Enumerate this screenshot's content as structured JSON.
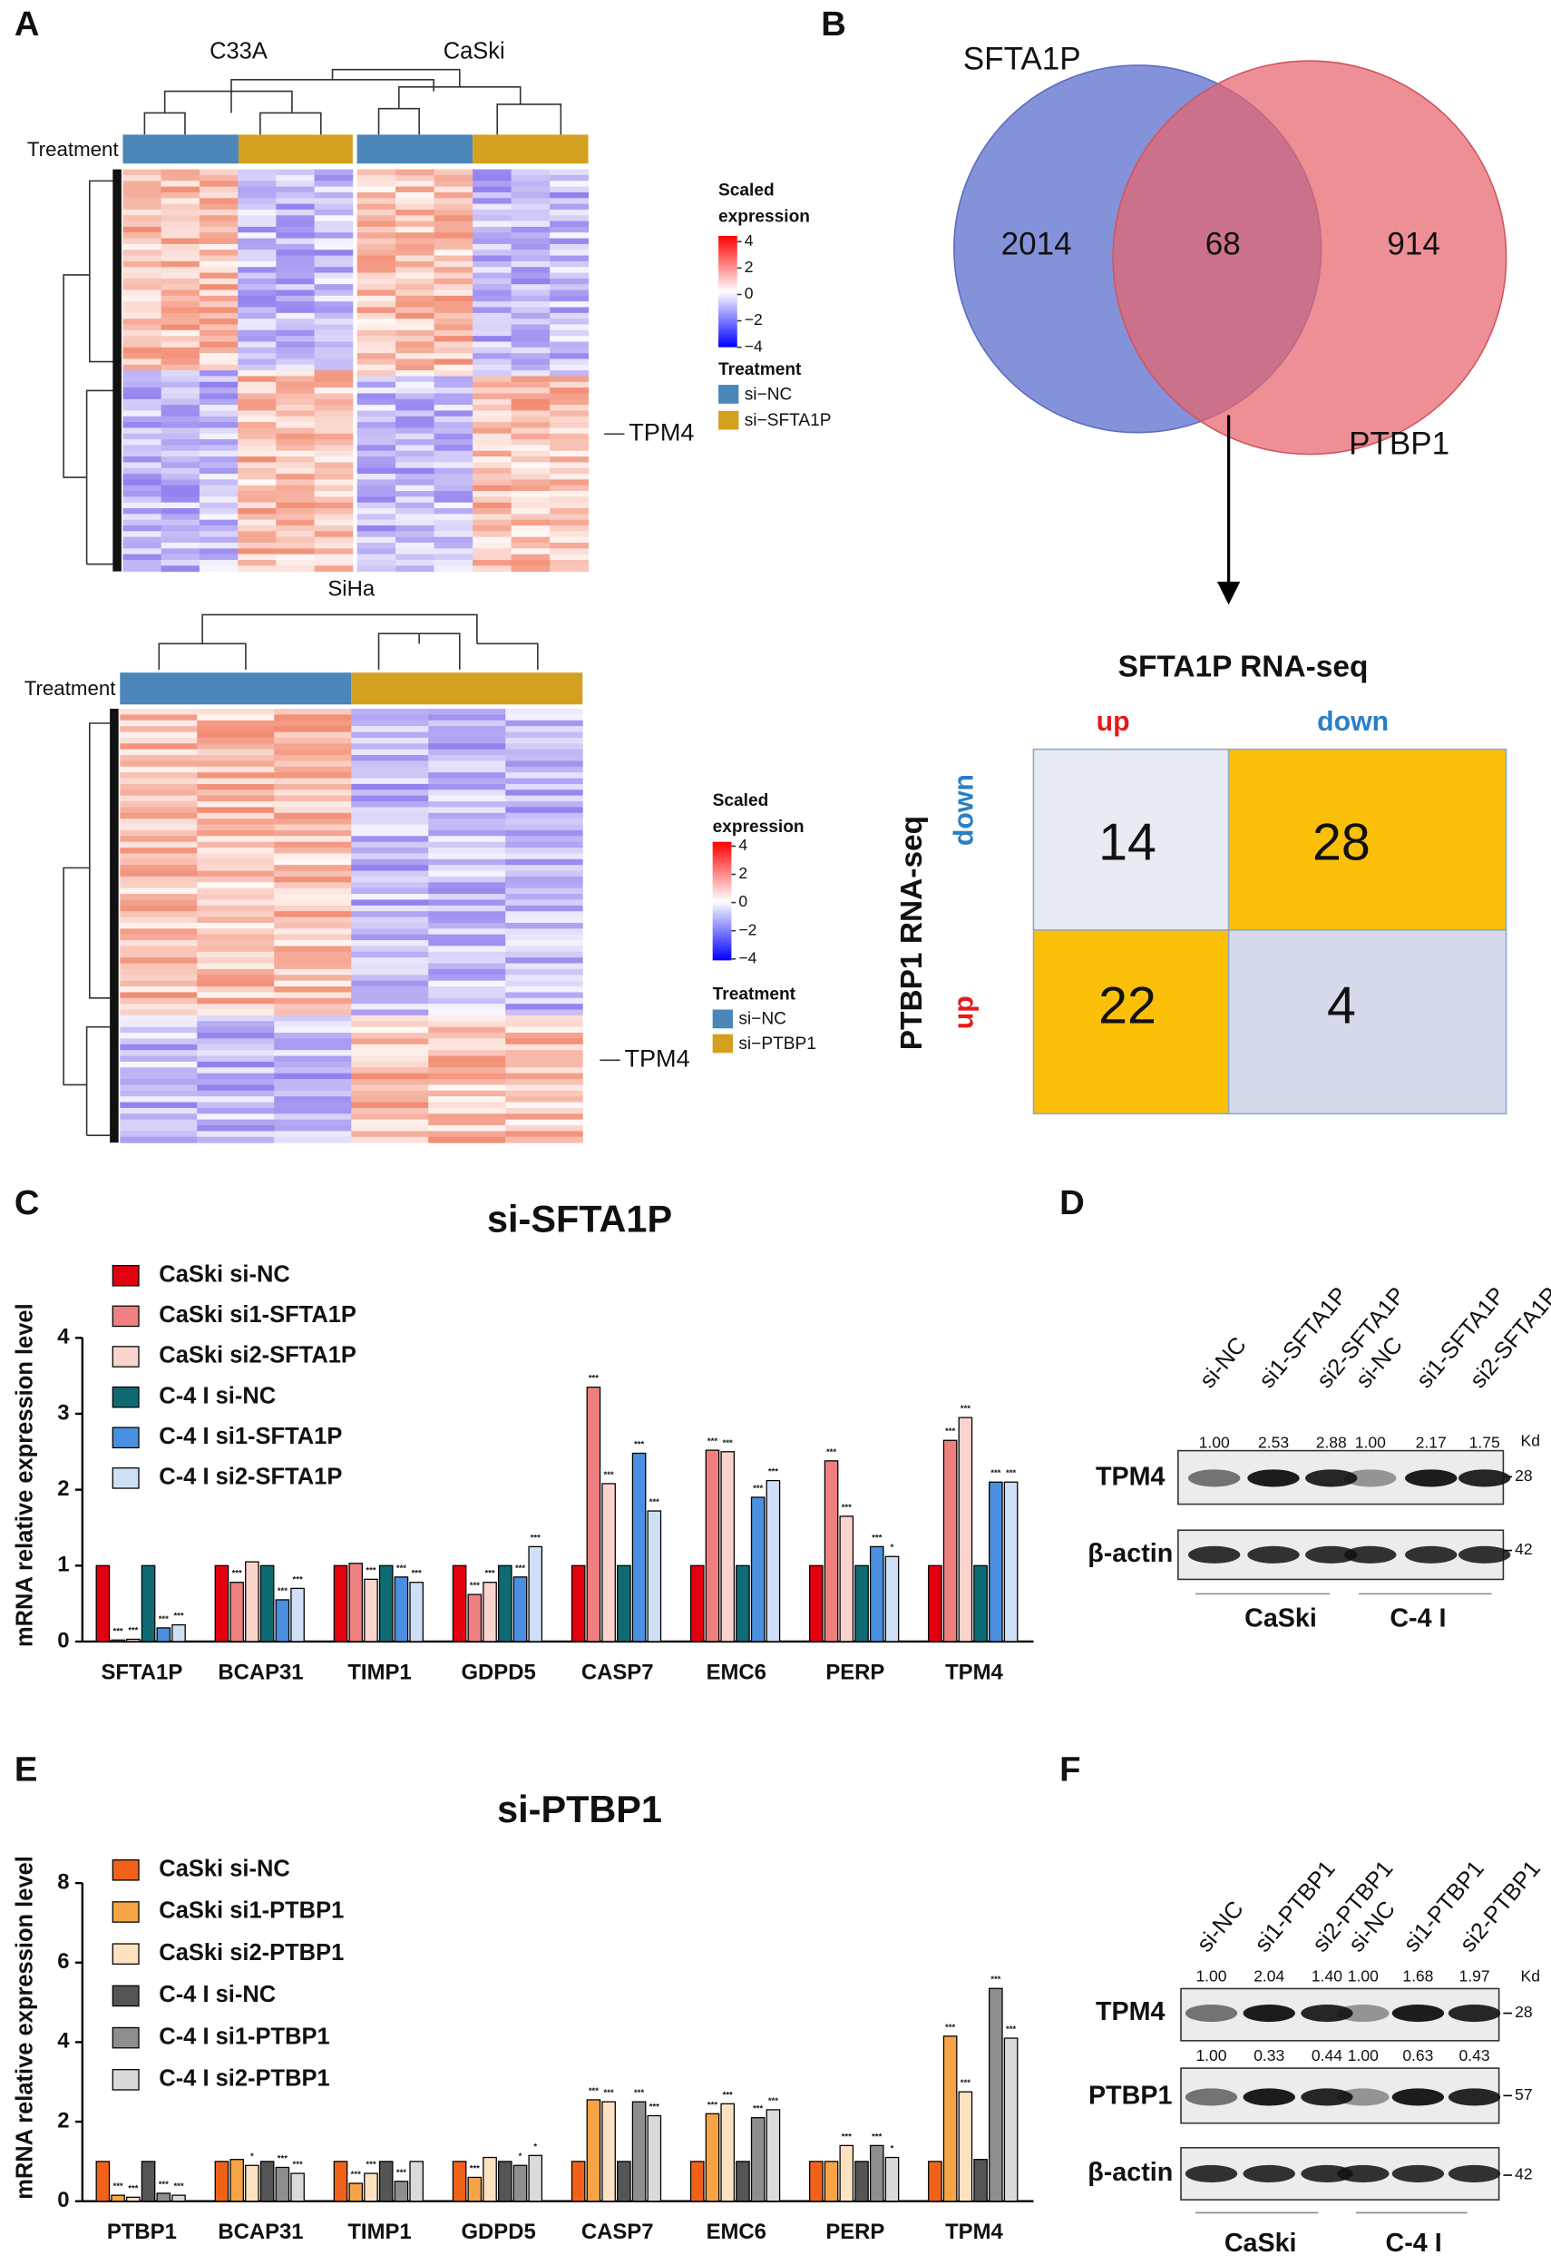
{
  "panel_labels": [
    "A",
    "B",
    "C",
    "D",
    "E",
    "F"
  ],
  "heatmap_top": {
    "groups": [
      "C33A",
      "CaSki"
    ],
    "annotation": "Treatment",
    "legend_title": [
      "Scaled",
      "expression"
    ],
    "legend_ticks": [
      4,
      2,
      0,
      {
        "value": -2,
        "label": "−2"
      },
      {
        "value": -4,
        "label": "−4"
      }
    ],
    "treatment_title": "Treatment",
    "treatments": [
      "si−NC",
      "si−SFTA1P"
    ],
    "gene_label": "TPM4"
  },
  "heatmap_bottom": {
    "group": "SiHa",
    "annotation": "Treatment",
    "legend_title": [
      "Scaled",
      "expression"
    ],
    "legend_ticks": [
      4,
      2,
      0,
      {
        "value": -2,
        "label": "−2"
      },
      {
        "value": -4,
        "label": "−4"
      }
    ],
    "treatment_title": "Treatment",
    "treatments": [
      "si−NC",
      "si−PTBP1"
    ],
    "gene_label": "TPM4"
  },
  "venn": {
    "sets": [
      "SFTA1P",
      "PTBP1"
    ],
    "counts": [
      2014,
      68,
      914
    ]
  },
  "quadrant": {
    "title": "SFTA1P RNA-seq",
    "col_labels": [
      "up",
      "down"
    ],
    "row_title": "PTBP1 RNA-seq",
    "row_labels": [
      "down",
      "up"
    ],
    "cells": [
      [
        14,
        28
      ],
      [
        22,
        4
      ]
    ]
  },
  "chart_data": [
    {
      "type": "bar",
      "title": "si-SFTA1P",
      "y_label": "mRNA relative expression level",
      "categories": [
        "SFTA1P",
        "BCAP31",
        "TIMP1",
        "GDPD5",
        "CASP7",
        "EMC6",
        "PERP",
        "TPM4"
      ],
      "ylim": [
        0,
        4
      ],
      "yticks": [
        0,
        1,
        2,
        3,
        4
      ],
      "series": [
        {
          "name": "CaSki si-NC",
          "color": "#e3000f",
          "values": [
            1.0,
            1.0,
            1.0,
            1.0,
            1.0,
            1.0,
            1.0,
            1.0
          ]
        },
        {
          "name": "CaSki si1-SFTA1P",
          "color": "#ee8080",
          "values": [
            0.02,
            0.78,
            1.03,
            0.62,
            3.35,
            2.52,
            2.38,
            2.65
          ],
          "stars": [
            "***",
            "***",
            null,
            "***",
            "***",
            "***",
            "***",
            "***"
          ]
        },
        {
          "name": "CaSki si2-SFTA1P",
          "color": "#fad4cc",
          "values": [
            0.03,
            1.05,
            0.82,
            0.78,
            2.08,
            2.5,
            1.65,
            2.95
          ],
          "stars": [
            "***",
            null,
            "***",
            "***",
            "***",
            "***",
            "***",
            "***"
          ]
        },
        {
          "name": "C-4 I si-NC",
          "color": "#0f6b73",
          "values": [
            1.0,
            1.0,
            1.0,
            1.0,
            1.0,
            1.0,
            1.0,
            1.0
          ]
        },
        {
          "name": "C-4 I si1-SFTA1P",
          "color": "#4a8fe0",
          "values": [
            0.18,
            0.55,
            0.85,
            0.85,
            2.48,
            1.9,
            1.25,
            2.1
          ],
          "stars": [
            "***",
            "***",
            "***",
            "***",
            "***",
            "***",
            "***",
            "***"
          ]
        },
        {
          "name": "C-4 I si2-SFTA1P",
          "color": "#cfe0f6",
          "values": [
            0.22,
            0.7,
            0.78,
            1.25,
            1.72,
            2.12,
            1.12,
            2.1
          ],
          "stars": [
            "***",
            "***",
            "***",
            "***",
            "***",
            "***",
            "*",
            "***"
          ]
        }
      ]
    },
    {
      "type": "bar",
      "title": "si-PTBP1",
      "y_label": "mRNA relative expression level",
      "categories": [
        "PTBP1",
        "BCAP31",
        "TIMP1",
        "GDPD5",
        "CASP7",
        "EMC6",
        "PERP",
        "TPM4"
      ],
      "ylim": [
        0,
        8
      ],
      "yticks": [
        0,
        2,
        4,
        6,
        8
      ],
      "series": [
        {
          "name": "CaSki si-NC",
          "color": "#f0621a",
          "values": [
            1.0,
            1.0,
            1.0,
            1.0,
            1.0,
            1.0,
            1.0,
            1.0
          ]
        },
        {
          "name": "CaSki si1-PTBP1",
          "color": "#f6a445",
          "values": [
            0.15,
            1.05,
            0.45,
            0.6,
            2.55,
            2.2,
            1.0,
            4.15
          ],
          "stars": [
            "***",
            null,
            "***",
            "***",
            "***",
            "***",
            null,
            "***"
          ]
        },
        {
          "name": "CaSki si2-PTBP1",
          "color": "#fde2c2",
          "values": [
            0.1,
            0.9,
            0.7,
            1.1,
            2.5,
            2.45,
            1.4,
            2.75
          ],
          "stars": [
            "***",
            "*",
            "***",
            null,
            "***",
            "***",
            "***",
            "***"
          ]
        },
        {
          "name": "C-4 I si-NC",
          "color": "#555555",
          "values": [
            1.0,
            1.0,
            1.0,
            1.0,
            1.0,
            1.0,
            1.0,
            1.05
          ]
        },
        {
          "name": "C-4 I si1-PTBP1",
          "color": "#8e8e8e",
          "values": [
            0.2,
            0.85,
            0.5,
            0.9,
            2.5,
            2.1,
            1.4,
            5.35
          ],
          "stars": [
            "***",
            "***",
            "***",
            "*",
            "***",
            "***",
            "***",
            "***"
          ]
        },
        {
          "name": "C-4 I si2-PTBP1",
          "color": "#dadada",
          "values": [
            0.15,
            0.7,
            1.0,
            1.15,
            2.15,
            2.3,
            1.1,
            4.1
          ],
          "stars": [
            "***",
            "***",
            null,
            "*",
            "***",
            "***",
            "*",
            "***"
          ]
        }
      ]
    }
  ],
  "blot_D": {
    "lanes": [
      "si-NC",
      "si1-SFTA1P",
      "si2-SFTA1P",
      "si-NC",
      "si1-SFTA1P",
      "si2-SFTA1P"
    ],
    "unit": "Kd",
    "rows": [
      {
        "label": "TPM4",
        "quant": [
          "1.00",
          "2.53",
          "2.88",
          "1.00",
          "2.17",
          "1.75"
        ],
        "marker": 28
      },
      {
        "label": "β-actin",
        "marker": 42
      }
    ],
    "groups": [
      "CaSki",
      "C-4 I"
    ]
  },
  "blot_F": {
    "lanes": [
      "si-NC",
      "si1-PTBP1",
      "si2-PTBP1",
      "si-NC",
      "si1-PTBP1",
      "si2-PTBP1"
    ],
    "unit": "Kd",
    "rows": [
      {
        "label": "TPM4",
        "quant": [
          "1.00",
          "2.04",
          "1.40",
          "1.00",
          "1.68",
          "1.97"
        ],
        "marker": 28
      },
      {
        "label": "PTBP1",
        "quant": [
          "1.00",
          "0.33",
          "0.44",
          "1.00",
          "0.63",
          "0.43"
        ],
        "marker": 57
      },
      {
        "label": "β-actin",
        "marker": 42
      }
    ],
    "groups": [
      "CaSki",
      "C-4 I"
    ]
  }
}
